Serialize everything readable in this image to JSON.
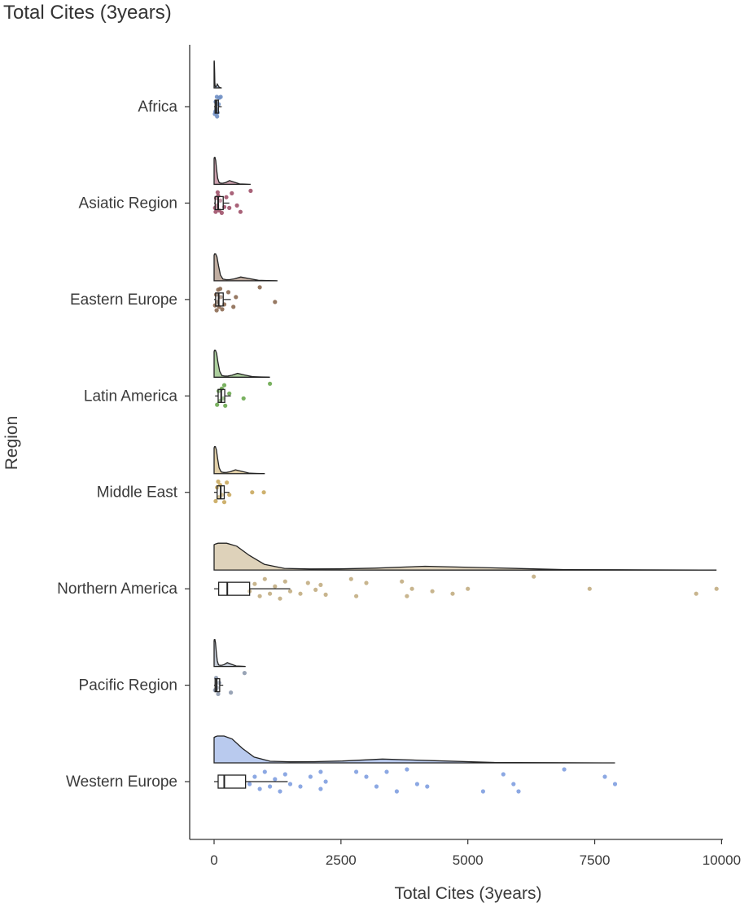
{
  "chart_data": {
    "type": "raincloud",
    "title": "Total Cites (3years)",
    "xlabel": "Total Cites (3years)",
    "ylabel": "Region",
    "xlim": [
      -100,
      10000
    ],
    "xticks": [
      0,
      2500,
      5000,
      7500,
      10000
    ],
    "grid": false,
    "legend": "none",
    "categories": [
      "Africa",
      "Asiatic Region",
      "Eastern Europe",
      "Latin America",
      "Middle East",
      "Northern America",
      "Pacific Region",
      "Western Europe"
    ],
    "series": [
      {
        "color": "#6f8fc4",
        "max": 150,
        "box": {
          "q1": 20,
          "median": 45,
          "q3": 85,
          "whisker_low": 0,
          "whisker_high": 150
        },
        "points": [
          {
            "x": 15,
            "j": 0.15
          },
          {
            "x": 30,
            "j": -0.1
          },
          {
            "x": 45,
            "j": 0.05
          },
          {
            "x": 55,
            "j": -0.2
          },
          {
            "x": 70,
            "j": 0.12
          },
          {
            "x": 90,
            "j": -0.05
          },
          {
            "x": 100,
            "j": -0.18
          },
          {
            "x": 130,
            "j": -0.2
          },
          {
            "x": 25,
            "j": 0.1
          },
          {
            "x": 60,
            "j": 0.2
          }
        ]
      },
      {
        "color": "#a0526a",
        "max": 720,
        "box": {
          "q1": 20,
          "median": 80,
          "q3": 180,
          "whisker_low": 0,
          "whisker_high": 300
        },
        "points": [
          {
            "x": 20,
            "j": 0.1
          },
          {
            "x": 40,
            "j": -0.1
          },
          {
            "x": 60,
            "j": 0.05
          },
          {
            "x": 80,
            "j": -0.15
          },
          {
            "x": 100,
            "j": 0.15
          },
          {
            "x": 120,
            "j": -0.05
          },
          {
            "x": 150,
            "j": 0.2
          },
          {
            "x": 200,
            "j": 0.08
          },
          {
            "x": 240,
            "j": -0.12
          },
          {
            "x": 300,
            "j": 0.1
          },
          {
            "x": 350,
            "j": -0.2
          },
          {
            "x": 450,
            "j": 0.05
          },
          {
            "x": 520,
            "j": 0.18
          },
          {
            "x": 720,
            "j": -0.25
          },
          {
            "x": 30,
            "j": 0.18
          },
          {
            "x": 70,
            "j": -0.22
          }
        ]
      },
      {
        "color": "#8c6a52",
        "max": 1250,
        "box": {
          "q1": 30,
          "median": 90,
          "q3": 180,
          "whisker_low": 0,
          "whisker_high": 330
        },
        "points": [
          {
            "x": 20,
            "j": 0.12
          },
          {
            "x": 40,
            "j": -0.1
          },
          {
            "x": 60,
            "j": 0.05
          },
          {
            "x": 80,
            "j": -0.2
          },
          {
            "x": 100,
            "j": 0.15
          },
          {
            "x": 130,
            "j": -0.05
          },
          {
            "x": 160,
            "j": 0.2
          },
          {
            "x": 200,
            "j": 0.1
          },
          {
            "x": 280,
            "j": -0.15
          },
          {
            "x": 380,
            "j": 0.15
          },
          {
            "x": 430,
            "j": -0.05
          },
          {
            "x": 900,
            "j": -0.25
          },
          {
            "x": 1200,
            "j": 0.05
          },
          {
            "x": 50,
            "j": 0.22
          },
          {
            "x": 120,
            "j": -0.22
          }
        ]
      },
      {
        "color": "#6aa84f",
        "max": 1100,
        "box": {
          "q1": 80,
          "median": 140,
          "q3": 210,
          "whisker_low": 20,
          "whisker_high": 330
        },
        "points": [
          {
            "x": 60,
            "j": 0.18
          },
          {
            "x": 90,
            "j": -0.1
          },
          {
            "x": 120,
            "j": 0.1
          },
          {
            "x": 150,
            "j": -0.15
          },
          {
            "x": 180,
            "j": 0.05
          },
          {
            "x": 220,
            "j": 0.2
          },
          {
            "x": 300,
            "j": -0.05
          },
          {
            "x": 580,
            "j": 0.05
          },
          {
            "x": 1100,
            "j": -0.25
          },
          {
            "x": 200,
            "j": -0.22
          }
        ]
      },
      {
        "color": "#c9a85e",
        "max": 1000,
        "box": {
          "q1": 60,
          "median": 130,
          "q3": 200,
          "whisker_low": 0,
          "whisker_high": 300
        },
        "points": [
          {
            "x": 30,
            "j": 0.18
          },
          {
            "x": 60,
            "j": -0.1
          },
          {
            "x": 90,
            "j": 0.1
          },
          {
            "x": 120,
            "j": -0.15
          },
          {
            "x": 150,
            "j": 0.05
          },
          {
            "x": 200,
            "j": 0.2
          },
          {
            "x": 250,
            "j": -0.2
          },
          {
            "x": 300,
            "j": 0.05
          },
          {
            "x": 750,
            "j": 0.0
          },
          {
            "x": 980,
            "j": 0.0
          },
          {
            "x": 80,
            "j": -0.22
          }
        ]
      },
      {
        "color": "#c2ad82",
        "max": 9900,
        "box": {
          "q1": 90,
          "median": 260,
          "q3": 700,
          "whisker_low": 0,
          "whisker_high": 1500
        },
        "points": [
          {
            "x": 700,
            "j": 0.05
          },
          {
            "x": 800,
            "j": -0.1
          },
          {
            "x": 900,
            "j": 0.15
          },
          {
            "x": 1000,
            "j": -0.2
          },
          {
            "x": 1100,
            "j": 0.1
          },
          {
            "x": 1200,
            "j": -0.05
          },
          {
            "x": 1300,
            "j": 0.2
          },
          {
            "x": 1400,
            "j": -0.15
          },
          {
            "x": 1500,
            "j": 0.05
          },
          {
            "x": 1700,
            "j": 0.1
          },
          {
            "x": 1850,
            "j": -0.12
          },
          {
            "x": 2000,
            "j": 0.02
          },
          {
            "x": 2100,
            "j": -0.08
          },
          {
            "x": 2200,
            "j": 0.12
          },
          {
            "x": 2700,
            "j": -0.2
          },
          {
            "x": 2800,
            "j": 0.15
          },
          {
            "x": 3000,
            "j": -0.12
          },
          {
            "x": 3700,
            "j": -0.15
          },
          {
            "x": 3800,
            "j": 0.15
          },
          {
            "x": 3900,
            "j": 0.0
          },
          {
            "x": 4300,
            "j": 0.05
          },
          {
            "x": 4700,
            "j": 0.1
          },
          {
            "x": 5000,
            "j": 0.0
          },
          {
            "x": 6300,
            "j": -0.25
          },
          {
            "x": 7400,
            "j": 0.0
          },
          {
            "x": 9500,
            "j": 0.1
          },
          {
            "x": 9900,
            "j": 0.0
          }
        ]
      },
      {
        "color": "#8e9aae",
        "max": 620,
        "box": {
          "q1": 20,
          "median": 50,
          "q3": 110,
          "whisker_low": 0,
          "whisker_high": 180
        },
        "points": [
          {
            "x": 20,
            "j": 0.1
          },
          {
            "x": 40,
            "j": -0.15
          },
          {
            "x": 60,
            "j": 0.05
          },
          {
            "x": 80,
            "j": 0.18
          },
          {
            "x": 100,
            "j": -0.05
          },
          {
            "x": 330,
            "j": 0.15
          },
          {
            "x": 600,
            "j": -0.25
          }
        ]
      },
      {
        "color": "#7f9fe0",
        "max": 7900,
        "box": {
          "q1": 80,
          "median": 200,
          "q3": 620,
          "whisker_low": 0,
          "whisker_high": 1450
        },
        "points": [
          {
            "x": 700,
            "j": 0.05
          },
          {
            "x": 800,
            "j": -0.1
          },
          {
            "x": 900,
            "j": 0.15
          },
          {
            "x": 1000,
            "j": -0.2
          },
          {
            "x": 1100,
            "j": 0.1
          },
          {
            "x": 1200,
            "j": -0.05
          },
          {
            "x": 1300,
            "j": 0.2
          },
          {
            "x": 1400,
            "j": -0.15
          },
          {
            "x": 1500,
            "j": 0.05
          },
          {
            "x": 1700,
            "j": 0.1
          },
          {
            "x": 1900,
            "j": -0.1
          },
          {
            "x": 2100,
            "j": 0.15
          },
          {
            "x": 2100,
            "j": -0.2
          },
          {
            "x": 2200,
            "j": 0.0
          },
          {
            "x": 2800,
            "j": -0.2
          },
          {
            "x": 3000,
            "j": -0.1
          },
          {
            "x": 3200,
            "j": 0.1
          },
          {
            "x": 3400,
            "j": -0.2
          },
          {
            "x": 3600,
            "j": 0.2
          },
          {
            "x": 3800,
            "j": -0.25
          },
          {
            "x": 4000,
            "j": 0.05
          },
          {
            "x": 4200,
            "j": 0.1
          },
          {
            "x": 5300,
            "j": 0.2
          },
          {
            "x": 5700,
            "j": -0.15
          },
          {
            "x": 5900,
            "j": 0.05
          },
          {
            "x": 6000,
            "j": 0.2
          },
          {
            "x": 6900,
            "j": -0.25
          },
          {
            "x": 7700,
            "j": -0.1
          },
          {
            "x": 7900,
            "j": 0.05
          }
        ]
      }
    ]
  }
}
